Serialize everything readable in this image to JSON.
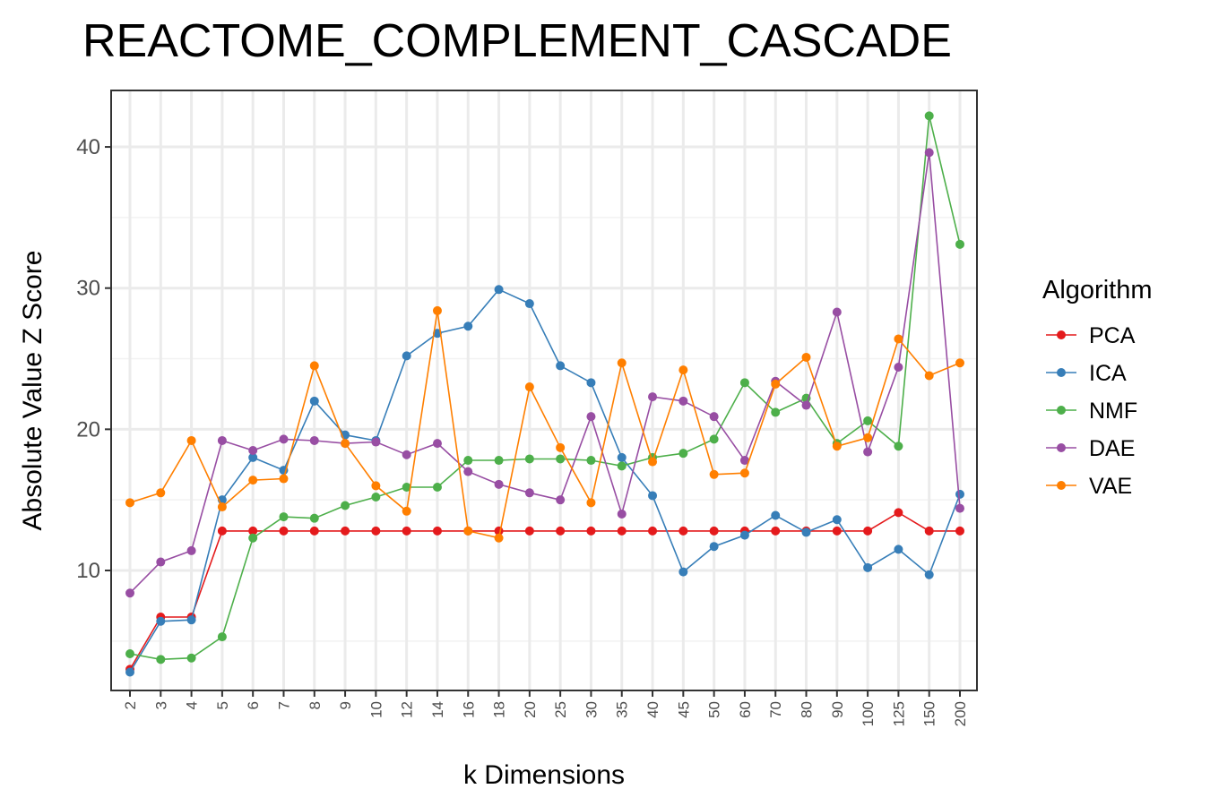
{
  "chart_data": {
    "type": "line",
    "title": "REACTOME_COMPLEMENT_CASCADE",
    "xlabel": "k Dimensions",
    "ylabel": "Absolute Value Z Score",
    "categories": [
      "2",
      "3",
      "4",
      "5",
      "6",
      "7",
      "8",
      "9",
      "10",
      "12",
      "14",
      "16",
      "18",
      "20",
      "25",
      "30",
      "35",
      "40",
      "45",
      "50",
      "60",
      "70",
      "80",
      "90",
      "100",
      "125",
      "150",
      "200"
    ],
    "yticks": [
      10,
      20,
      30,
      40
    ],
    "ylim": [
      1.5,
      44.0
    ],
    "grid": true,
    "legend": {
      "title": "Algorithm",
      "position": "right"
    },
    "series": [
      {
        "name": "PCA",
        "color": "#E41A1C",
        "values": [
          3.0,
          6.7,
          6.7,
          12.8,
          12.8,
          12.8,
          12.8,
          12.8,
          12.8,
          12.8,
          12.8,
          12.8,
          12.8,
          12.8,
          12.8,
          12.8,
          12.8,
          12.8,
          12.8,
          12.8,
          12.8,
          12.8,
          12.8,
          12.8,
          12.8,
          14.1,
          12.8,
          12.8
        ]
      },
      {
        "name": "ICA",
        "color": "#377EB8",
        "values": [
          2.8,
          6.4,
          6.5,
          15.0,
          18.0,
          17.1,
          22.0,
          19.6,
          19.2,
          25.2,
          26.8,
          27.3,
          29.9,
          28.9,
          24.5,
          23.3,
          18.0,
          15.3,
          9.9,
          11.7,
          12.5,
          13.9,
          12.7,
          13.6,
          10.2,
          11.5,
          9.7,
          15.4
        ]
      },
      {
        "name": "NMF",
        "color": "#4DAF4A",
        "values": [
          4.1,
          3.7,
          3.8,
          5.3,
          12.3,
          13.8,
          13.7,
          14.6,
          15.2,
          15.9,
          15.9,
          17.8,
          17.8,
          17.9,
          17.9,
          17.8,
          17.4,
          18.0,
          18.3,
          19.3,
          23.3,
          21.2,
          22.2,
          19.0,
          20.6,
          18.8,
          42.2,
          33.1
        ]
      },
      {
        "name": "DAE",
        "color": "#984EA3",
        "values": [
          8.4,
          10.6,
          11.4,
          19.2,
          18.5,
          19.3,
          19.2,
          19.0,
          19.1,
          18.2,
          19.0,
          17.0,
          16.1,
          15.5,
          15.0,
          20.9,
          14.0,
          22.3,
          22.0,
          20.9,
          17.8,
          23.4,
          21.7,
          28.3,
          18.4,
          24.4,
          39.6,
          14.4
        ]
      },
      {
        "name": "VAE",
        "color": "#FF7F00",
        "values": [
          14.8,
          15.5,
          19.2,
          14.5,
          16.4,
          16.5,
          24.5,
          19.0,
          16.0,
          14.2,
          28.4,
          12.8,
          12.3,
          23.0,
          18.7,
          14.8,
          24.7,
          17.7,
          24.2,
          16.8,
          16.9,
          23.2,
          25.1,
          18.8,
          19.4,
          26.4,
          23.8,
          24.7
        ]
      }
    ]
  }
}
